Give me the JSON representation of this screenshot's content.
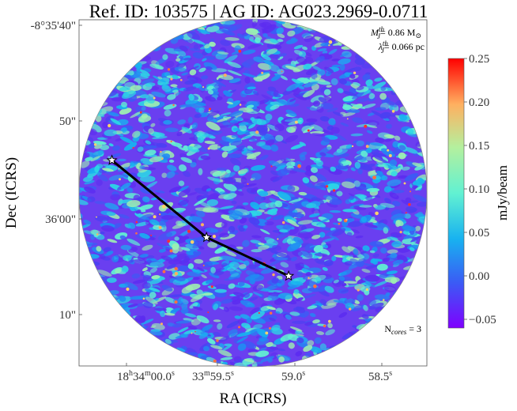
{
  "chart_data": {
    "type": "heatmap",
    "title": "Ref. ID: 103575 | AG ID: AG023.2969-0.0711",
    "xlabel": "RA (ICRS)",
    "ylabel": "Dec (ICRS)",
    "x_ticks": [
      {
        "main": "18",
        "sup1": "h",
        "mid": "34",
        "sup2": "m",
        "tail": "00.0",
        "sup3": "s"
      },
      {
        "main": "33",
        "sup1": "m",
        "mid": "59.5",
        "sup2": "s",
        "tail": "",
        "sup3": ""
      },
      {
        "main": "59.0",
        "sup1": "s",
        "mid": "",
        "sup2": "",
        "tail": "",
        "sup3": ""
      },
      {
        "main": "58.5",
        "sup1": "s",
        "mid": "",
        "sup2": "",
        "tail": "",
        "sup3": ""
      }
    ],
    "y_ticks": [
      "-8°35'40\"",
      "50\"",
      "36'00\"",
      "10\""
    ],
    "colorbar": {
      "label": "mJy/beam",
      "range": [
        -0.06,
        0.25
      ],
      "ticks": [
        -0.05,
        0.0,
        0.05,
        0.1,
        0.15,
        0.2,
        0.25
      ],
      "tick_labels": [
        "−0.05",
        "0.00",
        "0.05",
        "0.10",
        "0.15",
        "0.20",
        "0.25"
      ],
      "colormap": "rainbow"
    },
    "annotations": {
      "mass_symbol": "M",
      "mass_sup": "th",
      "mass_sub": "J",
      "mass_value": "= 0.86 M",
      "mass_unit_symbol": "⊙",
      "length_symbol": "λ",
      "length_sup": "th",
      "length_sub": "J",
      "length_value": "= 0.066 pc",
      "ncores_prefix": "N",
      "ncores_sub": "cores",
      "ncores_value": " = 3"
    },
    "cores": [
      {
        "ra_s": 0.08,
        "dec_arcsec": 54.0
      },
      {
        "ra_s": 59.56,
        "dec_arcsec": 62.0
      },
      {
        "ra_s": 59.04,
        "dec_arcsec": 66.0
      }
    ],
    "mst_edges": [
      [
        0,
        1
      ],
      [
        1,
        2
      ]
    ],
    "field_shape": "circle",
    "grid": false
  }
}
